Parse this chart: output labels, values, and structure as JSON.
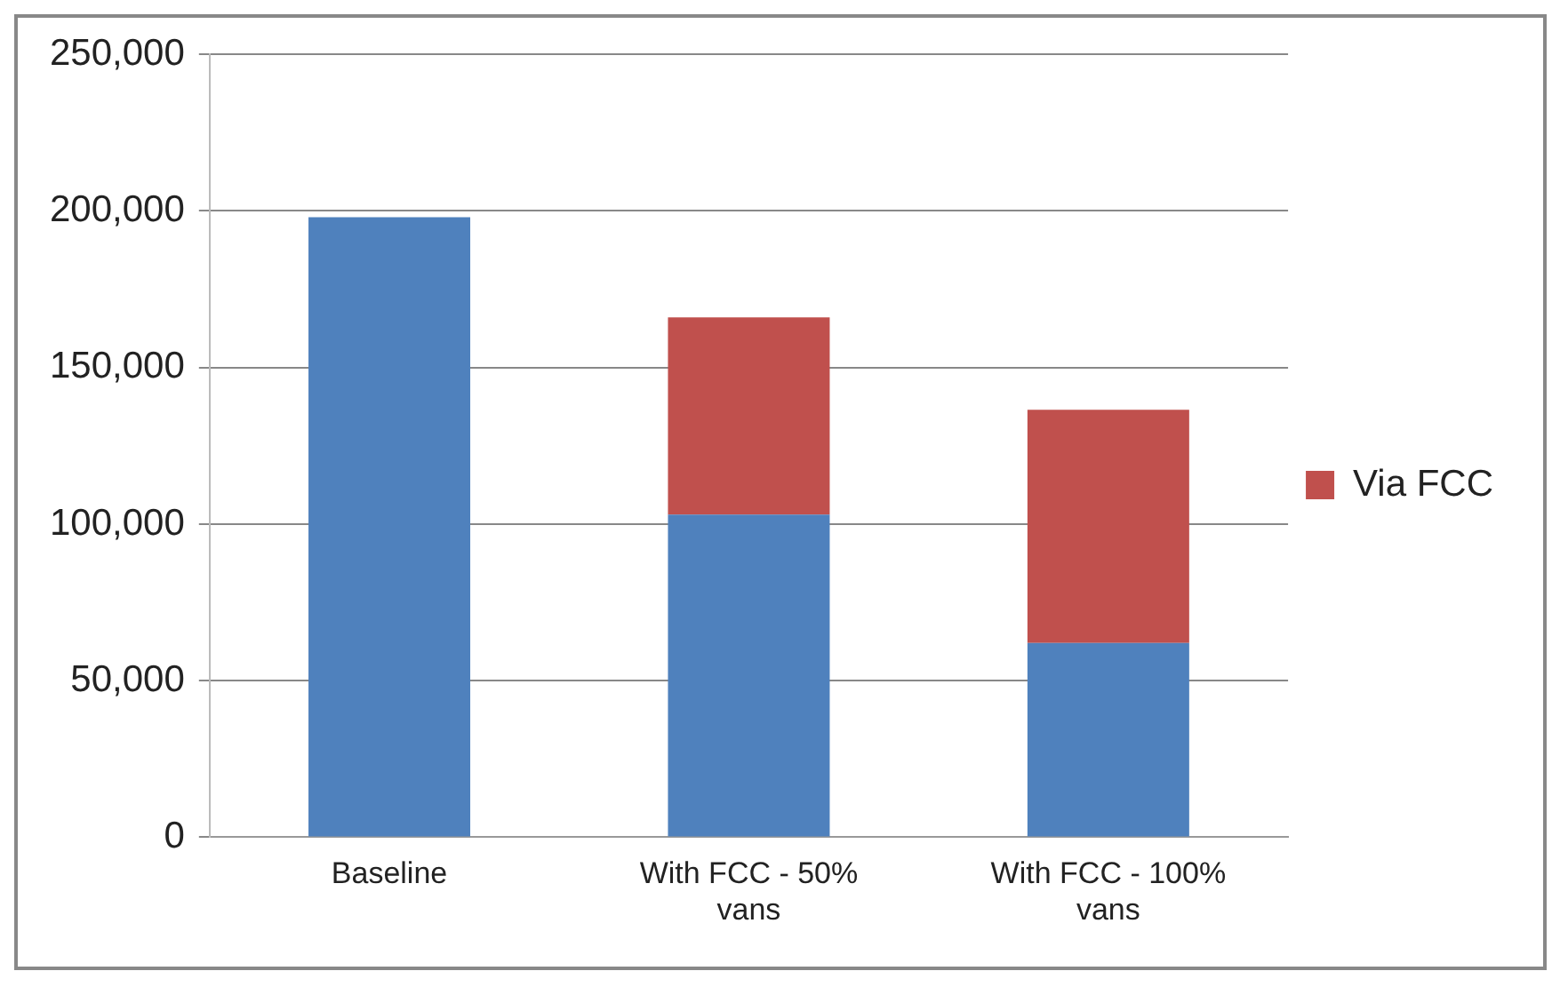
{
  "chart_data": {
    "type": "bar",
    "stacked": true,
    "categories": [
      "Baseline",
      "With FCC - 50% vans",
      "With FCC - 100% vans"
    ],
    "series": [
      {
        "color": "#4f81bd",
        "values": [
          198000,
          103000,
          62000
        ]
      },
      {
        "name": "Via FCC",
        "color": "#c0504d",
        "values": [
          null,
          63000,
          74500
        ]
      }
    ],
    "ylim": [
      0,
      250000
    ],
    "yticks": [
      0,
      {
        "value": 50000,
        "label": "50,000"
      },
      {
        "value": 100000,
        "label": "100,000"
      },
      {
        "value": 150000,
        "label": "150,000"
      },
      {
        "value": 200000,
        "label": "200,000"
      },
      {
        "value": 250000,
        "label": "250,000"
      }
    ],
    "grid": "y",
    "legend": "right"
  }
}
